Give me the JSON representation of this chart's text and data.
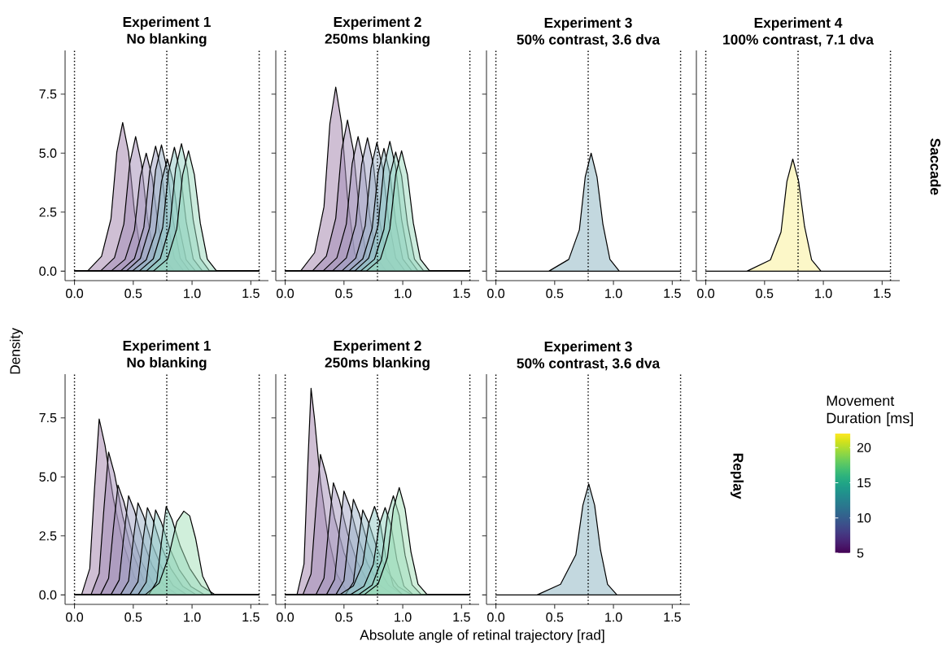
{
  "chart_data": [
    {
      "type": "area",
      "title": "Experiment 1",
      "subtitle": "No blanking",
      "ylabel": "Density",
      "xlim": [
        -0.08,
        1.65
      ],
      "ylim": [
        -0.4,
        9.35
      ],
      "xticks": [
        {
          "value": 0,
          "label": "0.0"
        },
        {
          "value": 0.5,
          "label": "0.5"
        },
        {
          "value": 1,
          "label": "1.0"
        },
        {
          "value": 1.5,
          "label": "1.5"
        }
      ],
      "yticks": [
        {
          "value": 0,
          "label": "0.0"
        },
        {
          "value": 2.5,
          "label": "2.5"
        },
        {
          "value": 5,
          "label": "5.0"
        },
        {
          "value": 7.5,
          "label": "7.5"
        }
      ],
      "ref_lines": [
        {
          "axis": "x",
          "value": 0,
          "line_style": "dotted"
        },
        {
          "axis": "x",
          "value": 0.785,
          "line_style": "dotted"
        },
        {
          "axis": "x",
          "value": 1.571,
          "line_style": "dotted"
        }
      ],
      "series": [
        {
          "color": "#a080aa",
          "x": [
            0,
            0.11,
            0.23,
            0.31,
            0.36,
            0.41,
            0.46,
            0.51,
            0.57,
            0.65,
            1.57
          ],
          "values": [
            0,
            0,
            0.63,
            2.21,
            5.04,
            6.3,
            5.04,
            2.52,
            0.63,
            0,
            0
          ]
        },
        {
          "color": "#a28cb6",
          "x": [
            0,
            0.22,
            0.34,
            0.42,
            0.47,
            0.52,
            0.57,
            0.62,
            0.68,
            0.76,
            1.57
          ],
          "values": [
            0,
            0,
            0.57,
            2.0,
            4.56,
            5.7,
            4.56,
            2.28,
            0.57,
            0,
            0
          ]
        },
        {
          "color": "#a396bc",
          "x": [
            0,
            0.31,
            0.43,
            0.51,
            0.56,
            0.61,
            0.66,
            0.71,
            0.77,
            0.85,
            1.57
          ],
          "values": [
            0,
            0,
            0.5,
            1.75,
            4.0,
            5.0,
            4.0,
            2.0,
            0.5,
            0,
            0
          ]
        },
        {
          "color": "#a0a2c3",
          "x": [
            0,
            0.39,
            0.51,
            0.59,
            0.64,
            0.69,
            0.74,
            0.79,
            0.85,
            0.93,
            1.57
          ],
          "values": [
            0,
            0,
            0.53,
            1.86,
            4.24,
            5.3,
            4.24,
            2.12,
            0.53,
            0,
            0
          ]
        },
        {
          "color": "#9aafc6",
          "x": [
            0,
            0.44,
            0.56,
            0.64,
            0.69,
            0.74,
            0.79,
            0.84,
            0.9,
            0.98,
            1.57
          ],
          "values": [
            0,
            0,
            0.54,
            1.87,
            4.28,
            5.35,
            4.28,
            2.14,
            0.54,
            0,
            0
          ]
        },
        {
          "color": "#95bcc7",
          "x": [
            0,
            0.49,
            0.61,
            0.69,
            0.74,
            0.79,
            0.84,
            0.89,
            0.95,
            1.03,
            1.57
          ],
          "values": [
            0,
            0,
            0.48,
            1.66,
            3.8,
            4.75,
            3.8,
            1.9,
            0.48,
            0,
            0
          ]
        },
        {
          "color": "#90c8c6",
          "x": [
            0,
            0.55,
            0.67,
            0.75,
            0.8,
            0.85,
            0.9,
            0.95,
            1.01,
            1.09,
            1.57
          ],
          "values": [
            0,
            0,
            0.52,
            1.84,
            4.2,
            5.25,
            4.2,
            2.1,
            0.52,
            0,
            0
          ]
        },
        {
          "color": "#91d4c2",
          "x": [
            0,
            0.61,
            0.73,
            0.81,
            0.86,
            0.91,
            0.96,
            1.01,
            1.07,
            1.15,
            1.57
          ],
          "values": [
            0,
            0,
            0.54,
            1.89,
            4.32,
            5.4,
            4.32,
            2.16,
            0.54,
            0,
            0
          ]
        },
        {
          "color": "#9adabd",
          "x": [
            0,
            0.67,
            0.79,
            0.87,
            0.92,
            0.97,
            1.02,
            1.07,
            1.13,
            1.21,
            1.57
          ],
          "values": [
            0,
            0,
            0.51,
            1.79,
            4.08,
            5.1,
            4.08,
            2.04,
            0.51,
            0,
            0
          ]
        }
      ]
    },
    {
      "type": "area",
      "title": "Experiment 2",
      "subtitle": "250ms blanking",
      "tick_labels": "x",
      "xlim": [
        -0.08,
        1.65
      ],
      "ylim": [
        -0.4,
        9.35
      ],
      "xticks": [
        {
          "value": 0,
          "label": "0.0"
        },
        {
          "value": 0.5,
          "label": "0.5"
        },
        {
          "value": 1,
          "label": "1.0"
        },
        {
          "value": 1.5,
          "label": "1.5"
        }
      ],
      "yticks": [
        0,
        2.5,
        5,
        7.5
      ],
      "ref_lines": [
        {
          "axis": "x",
          "value": 0,
          "line_style": "dotted"
        },
        {
          "axis": "x",
          "value": 0.785,
          "line_style": "dotted"
        },
        {
          "axis": "x",
          "value": 1.571,
          "line_style": "dotted"
        }
      ],
      "series": [
        {
          "color": "#a080aa",
          "x": [
            0,
            0.13,
            0.25,
            0.33,
            0.38,
            0.43,
            0.48,
            0.53,
            0.59,
            0.67,
            1.57
          ],
          "values": [
            0,
            0,
            0.78,
            2.73,
            6.24,
            7.8,
            6.24,
            3.12,
            0.78,
            0,
            0
          ]
        },
        {
          "color": "#a28cb6",
          "x": [
            0,
            0.23,
            0.35,
            0.43,
            0.48,
            0.53,
            0.58,
            0.63,
            0.69,
            0.77,
            1.57
          ],
          "values": [
            0,
            0,
            0.64,
            2.24,
            5.12,
            6.4,
            5.12,
            2.56,
            0.64,
            0,
            0
          ]
        },
        {
          "color": "#a396bc",
          "x": [
            0,
            0.32,
            0.44,
            0.52,
            0.57,
            0.62,
            0.67,
            0.72,
            0.78,
            0.86,
            1.57
          ],
          "values": [
            0,
            0,
            0.57,
            2.0,
            4.56,
            5.7,
            4.56,
            2.28,
            0.57,
            0,
            0
          ]
        },
        {
          "color": "#a0a2c3",
          "x": [
            0,
            0.4,
            0.52,
            0.6,
            0.65,
            0.7,
            0.75,
            0.8,
            0.86,
            0.94,
            1.57
          ],
          "values": [
            0,
            0,
            0.56,
            1.98,
            4.52,
            5.65,
            4.52,
            2.26,
            0.56,
            0,
            0
          ]
        },
        {
          "color": "#9aafc6",
          "x": [
            0,
            0.48,
            0.6,
            0.68,
            0.73,
            0.78,
            0.83,
            0.88,
            0.94,
            1.02,
            1.57
          ],
          "values": [
            0,
            0,
            0.55,
            1.91,
            4.36,
            5.45,
            4.36,
            2.18,
            0.55,
            0,
            0
          ]
        },
        {
          "color": "#95bcc7",
          "x": [
            0,
            0.54,
            0.66,
            0.74,
            0.79,
            0.84,
            0.89,
            0.94,
            1.0,
            1.08,
            1.57
          ],
          "values": [
            0,
            0,
            0.52,
            1.82,
            4.16,
            5.2,
            4.16,
            2.08,
            0.52,
            0,
            0
          ]
        },
        {
          "color": "#90c8c6",
          "x": [
            0,
            0.59,
            0.71,
            0.79,
            0.84,
            0.89,
            0.94,
            0.99,
            1.05,
            1.13,
            1.57
          ],
          "values": [
            0,
            0,
            0.55,
            1.93,
            4.4,
            5.5,
            4.4,
            2.2,
            0.55,
            0,
            0
          ]
        },
        {
          "color": "#91d4c2",
          "x": [
            0,
            0.64,
            0.76,
            0.84,
            0.89,
            0.94,
            0.99,
            1.04,
            1.1,
            1.18,
            1.57
          ],
          "values": [
            0,
            0,
            0.51,
            1.77,
            4.04,
            5.05,
            4.04,
            2.02,
            0.51,
            0,
            0
          ]
        },
        {
          "color": "#9adabd",
          "x": [
            0,
            0.69,
            0.81,
            0.89,
            0.94,
            0.99,
            1.04,
            1.09,
            1.15,
            1.23,
            1.57
          ],
          "values": [
            0,
            0,
            0.51,
            1.79,
            4.08,
            5.1,
            4.08,
            2.04,
            0.51,
            0,
            0
          ]
        }
      ]
    },
    {
      "type": "area",
      "title": "Experiment 3",
      "subtitle": "50% contrast, 3.6 dva",
      "tick_labels": "x",
      "xlim": [
        -0.08,
        1.65
      ],
      "ylim": [
        -0.4,
        9.35
      ],
      "xticks": [
        {
          "value": 0,
          "label": "0.0"
        },
        {
          "value": 0.5,
          "label": "0.5"
        },
        {
          "value": 1,
          "label": "1.0"
        },
        {
          "value": 1.5,
          "label": "1.5"
        }
      ],
      "yticks": [
        0,
        2.5,
        5,
        7.5
      ],
      "ref_lines": [
        {
          "axis": "x",
          "value": 0,
          "line_style": "dotted"
        },
        {
          "axis": "x",
          "value": 0.785,
          "line_style": "dotted"
        },
        {
          "axis": "x",
          "value": 1.571,
          "line_style": "dotted"
        }
      ],
      "series": [
        {
          "color": "#88b2bf",
          "x": [
            0,
            0.45,
            0.62,
            0.71,
            0.76,
            0.81,
            0.86,
            0.91,
            0.97,
            1.05,
            1.57
          ],
          "values": [
            0,
            0,
            0.5,
            1.75,
            4.0,
            5.0,
            4.0,
            2.0,
            0.5,
            0,
            0
          ]
        }
      ]
    },
    {
      "type": "area",
      "title": "Experiment 4",
      "subtitle": "100% contrast, 7.1 dva",
      "tick_labels": "x",
      "annotations": [
        "Saccade"
      ],
      "xlim": [
        -0.08,
        1.65
      ],
      "ylim": [
        -0.4,
        9.35
      ],
      "xticks": [
        {
          "value": 0,
          "label": "0.0"
        },
        {
          "value": 0.5,
          "label": "0.5"
        },
        {
          "value": 1,
          "label": "1.0"
        },
        {
          "value": 1.5,
          "label": "1.5"
        }
      ],
      "yticks": [
        0,
        2.5,
        5,
        7.5
      ],
      "ref_lines": [
        {
          "axis": "x",
          "value": 0,
          "line_style": "dotted"
        },
        {
          "axis": "x",
          "value": 0.785,
          "line_style": "dotted"
        },
        {
          "axis": "x",
          "value": 1.571,
          "line_style": "dotted"
        }
      ],
      "series": [
        {
          "color": "#f9ef91",
          "x": [
            0,
            0.35,
            0.55,
            0.64,
            0.69,
            0.74,
            0.79,
            0.84,
            0.9,
            0.98,
            1.57
          ],
          "values": [
            0,
            0,
            0.48,
            1.66,
            3.8,
            4.75,
            3.8,
            1.9,
            0.48,
            0,
            0
          ]
        }
      ]
    },
    {
      "type": "area",
      "title": "Experiment 1",
      "subtitle": "No blanking",
      "xlim": [
        -0.08,
        1.65
      ],
      "ylim": [
        -0.4,
        9.35
      ],
      "xticks": [
        {
          "value": 0,
          "label": "0.0"
        },
        {
          "value": 0.5,
          "label": "0.5"
        },
        {
          "value": 1,
          "label": "1.0"
        },
        {
          "value": 1.5,
          "label": "1.5"
        }
      ],
      "yticks": [
        {
          "value": 0,
          "label": "0.0"
        },
        {
          "value": 2.5,
          "label": "2.5"
        },
        {
          "value": 5,
          "label": "5.0"
        },
        {
          "value": 7.5,
          "label": "7.5"
        }
      ],
      "ref_lines": [
        {
          "axis": "x",
          "value": 0,
          "line_style": "dotted"
        },
        {
          "axis": "x",
          "value": 0.785,
          "line_style": "dotted"
        },
        {
          "axis": "x",
          "value": 1.571,
          "line_style": "dotted"
        }
      ],
      "series": [
        {
          "color": "#a080aa",
          "x": [
            0,
            0.06,
            0.13,
            0.17,
            0.21,
            0.26,
            0.33,
            0.41,
            0.51,
            0.63,
            1.57
          ],
          "values": [
            0,
            0,
            1.12,
            4.47,
            7.45,
            6.33,
            4.1,
            2.24,
            0.75,
            0,
            0
          ]
        },
        {
          "color": "#a28cb6",
          "x": [
            0,
            0.14,
            0.21,
            0.25,
            0.29,
            0.34,
            0.41,
            0.49,
            0.59,
            0.71,
            1.57
          ],
          "values": [
            0,
            0,
            0.91,
            3.63,
            6.05,
            5.14,
            3.33,
            1.82,
            0.61,
            0,
            0
          ]
        },
        {
          "color": "#a396bc",
          "x": [
            0,
            0.22,
            0.29,
            0.33,
            0.37,
            0.42,
            0.49,
            0.57,
            0.67,
            0.79,
            1.57
          ],
          "values": [
            0,
            0,
            0.7,
            2.79,
            4.65,
            3.95,
            2.56,
            1.4,
            0.47,
            0,
            0
          ]
        },
        {
          "color": "#a0a2c3",
          "x": [
            0,
            0.31,
            0.38,
            0.42,
            0.46,
            0.51,
            0.58,
            0.66,
            0.76,
            0.88,
            1.57
          ],
          "values": [
            0,
            0,
            0.63,
            2.52,
            4.2,
            3.57,
            2.31,
            1.26,
            0.42,
            0,
            0
          ]
        },
        {
          "color": "#9aafc6",
          "x": [
            0,
            0.39,
            0.46,
            0.5,
            0.54,
            0.59,
            0.66,
            0.74,
            0.84,
            0.96,
            1.57
          ],
          "values": [
            0,
            0,
            0.59,
            2.34,
            3.9,
            3.32,
            2.15,
            1.17,
            0.39,
            0,
            0
          ]
        },
        {
          "color": "#95bcc7",
          "x": [
            0,
            0.47,
            0.54,
            0.58,
            0.62,
            0.67,
            0.74,
            0.82,
            0.92,
            1.04,
            1.57
          ],
          "values": [
            0,
            0,
            0.56,
            2.22,
            3.7,
            3.15,
            2.04,
            1.11,
            0.37,
            0,
            0
          ]
        },
        {
          "color": "#90c8c6",
          "x": [
            0,
            0.54,
            0.61,
            0.65,
            0.69,
            0.74,
            0.81,
            0.89,
            0.99,
            1.11,
            1.57
          ],
          "values": [
            0,
            0,
            0.54,
            2.16,
            3.6,
            3.06,
            1.98,
            1.08,
            0.36,
            0,
            0
          ]
        },
        {
          "color": "#91d4c2",
          "x": [
            0,
            0.63,
            0.7,
            0.74,
            0.78,
            0.83,
            0.9,
            0.98,
            1.08,
            1.2,
            1.57
          ],
          "values": [
            0,
            0,
            0.56,
            2.25,
            3.75,
            3.19,
            2.06,
            1.13,
            0.38,
            0,
            0
          ]
        },
        {
          "color": "#a2dfb8",
          "x": [
            0,
            0.6,
            0.72,
            0.8,
            0.87,
            0.93,
            0.98,
            1.03,
            1.09,
            1.17,
            1.57
          ],
          "values": [
            0,
            0,
            0.5,
            1.6,
            3.1,
            3.55,
            3.35,
            2.4,
            0.8,
            0,
            0
          ]
        }
      ]
    },
    {
      "type": "area",
      "title": "Experiment 2",
      "subtitle": "250ms blanking",
      "tick_labels": "x",
      "xlabel": "Absolute angle of retinal trajectory [rad]",
      "xlim": [
        -0.08,
        1.65
      ],
      "ylim": [
        -0.4,
        9.35
      ],
      "xticks": [
        {
          "value": 0,
          "label": "0.0"
        },
        {
          "value": 0.5,
          "label": "0.5"
        },
        {
          "value": 1,
          "label": "1.0"
        },
        {
          "value": 1.5,
          "label": "1.5"
        }
      ],
      "yticks": [
        0,
        2.5,
        5,
        7.5
      ],
      "ref_lines": [
        {
          "axis": "x",
          "value": 0,
          "line_style": "dotted"
        },
        {
          "axis": "x",
          "value": 0.785,
          "line_style": "dotted"
        },
        {
          "axis": "x",
          "value": 1.571,
          "line_style": "dotted"
        }
      ],
      "series": [
        {
          "color": "#a080aa",
          "x": [
            0,
            0.1,
            0.16,
            0.19,
            0.22,
            0.25,
            0.3,
            0.36,
            0.44,
            0.54,
            1.57
          ],
          "values": [
            0,
            0,
            1.31,
            5.25,
            8.75,
            7.44,
            4.81,
            2.63,
            0.88,
            0,
            0
          ]
        },
        {
          "color": "#a28cb6",
          "x": [
            0,
            0.15,
            0.22,
            0.26,
            0.3,
            0.35,
            0.42,
            0.5,
            0.6,
            0.72,
            1.57
          ],
          "values": [
            0,
            0,
            0.89,
            3.57,
            5.95,
            5.06,
            3.27,
            1.79,
            0.6,
            0,
            0
          ]
        },
        {
          "color": "#a396bc",
          "x": [
            0,
            0.26,
            0.33,
            0.37,
            0.41,
            0.46,
            0.53,
            0.61,
            0.71,
            0.83,
            1.57
          ],
          "values": [
            0,
            0,
            0.71,
            2.85,
            4.75,
            4.04,
            2.61,
            1.43,
            0.48,
            0,
            0
          ]
        },
        {
          "color": "#a0a2c3",
          "x": [
            0,
            0.35,
            0.42,
            0.46,
            0.5,
            0.55,
            0.62,
            0.7,
            0.8,
            0.92,
            1.57
          ],
          "values": [
            0,
            0,
            0.66,
            2.64,
            4.4,
            3.74,
            2.42,
            1.32,
            0.44,
            0,
            0
          ]
        },
        {
          "color": "#9aafc6",
          "x": [
            0,
            0.43,
            0.5,
            0.54,
            0.58,
            0.63,
            0.7,
            0.78,
            0.88,
            1.0,
            1.57
          ],
          "values": [
            0,
            0,
            0.61,
            2.43,
            4.05,
            3.44,
            2.23,
            1.22,
            0.41,
            0,
            0
          ]
        },
        {
          "color": "#95bcc7",
          "x": [
            0,
            0.51,
            0.58,
            0.62,
            0.66,
            0.71,
            0.78,
            0.86,
            0.96,
            1.08,
            1.57
          ],
          "values": [
            0,
            0,
            0.54,
            2.16,
            3.6,
            3.06,
            1.98,
            1.08,
            0.36,
            0,
            0
          ]
        },
        {
          "color": "#90c8c6",
          "x": [
            0,
            0.46,
            0.58,
            0.66,
            0.71,
            0.76,
            0.81,
            0.86,
            0.92,
            1.0,
            1.57
          ],
          "values": [
            0,
            0,
            0.38,
            1.31,
            3.0,
            3.75,
            3.0,
            1.5,
            0.38,
            0,
            0
          ]
        },
        {
          "color": "#91d4c2",
          "x": [
            0,
            0.55,
            0.67,
            0.75,
            0.8,
            0.85,
            0.9,
            0.95,
            1.01,
            1.09,
            1.57
          ],
          "values": [
            0,
            0,
            0.37,
            1.3,
            2.96,
            3.7,
            2.96,
            1.48,
            0.37,
            0,
            0
          ]
        },
        {
          "color": "#9adabd",
          "x": [
            0,
            0.62,
            0.74,
            0.82,
            0.87,
            0.92,
            0.97,
            1.02,
            1.08,
            1.16,
            1.57
          ],
          "values": [
            0,
            0,
            0.42,
            1.47,
            3.36,
            4.2,
            3.36,
            1.68,
            0.42,
            0,
            0
          ]
        },
        {
          "color": "#a2dfb8",
          "x": [
            0,
            0.67,
            0.79,
            0.87,
            0.92,
            0.97,
            1.02,
            1.07,
            1.13,
            1.21,
            1.57
          ],
          "values": [
            0,
            0,
            0.46,
            1.59,
            3.64,
            4.55,
            3.64,
            1.82,
            0.46,
            0,
            0
          ]
        }
      ]
    },
    {
      "type": "area",
      "title": "Experiment 3",
      "subtitle": "50% contrast, 3.6 dva",
      "tick_labels": "x",
      "annotations": [
        "Replay"
      ],
      "clabel": "Movement Duration [ms]",
      "clim": [
        5,
        22
      ],
      "cticks": [
        5,
        10,
        15,
        20
      ],
      "xlim": [
        -0.08,
        1.65
      ],
      "ylim": [
        -0.4,
        9.35
      ],
      "xticks": [
        {
          "value": 0,
          "label": "0.0"
        },
        {
          "value": 0.5,
          "label": "0.5"
        },
        {
          "value": 1,
          "label": "1.0"
        },
        {
          "value": 1.5,
          "label": "1.5"
        }
      ],
      "yticks": [
        0,
        2.5,
        5,
        7.5
      ],
      "ref_lines": [
        {
          "axis": "x",
          "value": 0,
          "line_style": "dotted"
        },
        {
          "axis": "x",
          "value": 0.785,
          "line_style": "dotted"
        },
        {
          "axis": "x",
          "value": 1.571,
          "line_style": "dotted"
        }
      ],
      "series": [
        {
          "color": "#88b2bf",
          "x": [
            0,
            0.35,
            0.55,
            0.68,
            0.74,
            0.79,
            0.84,
            0.89,
            0.95,
            1.03,
            1.57
          ],
          "values": [
            0,
            0,
            0.45,
            1.7,
            3.8,
            4.7,
            3.8,
            1.9,
            0.45,
            0,
            0
          ]
        }
      ]
    }
  ]
}
